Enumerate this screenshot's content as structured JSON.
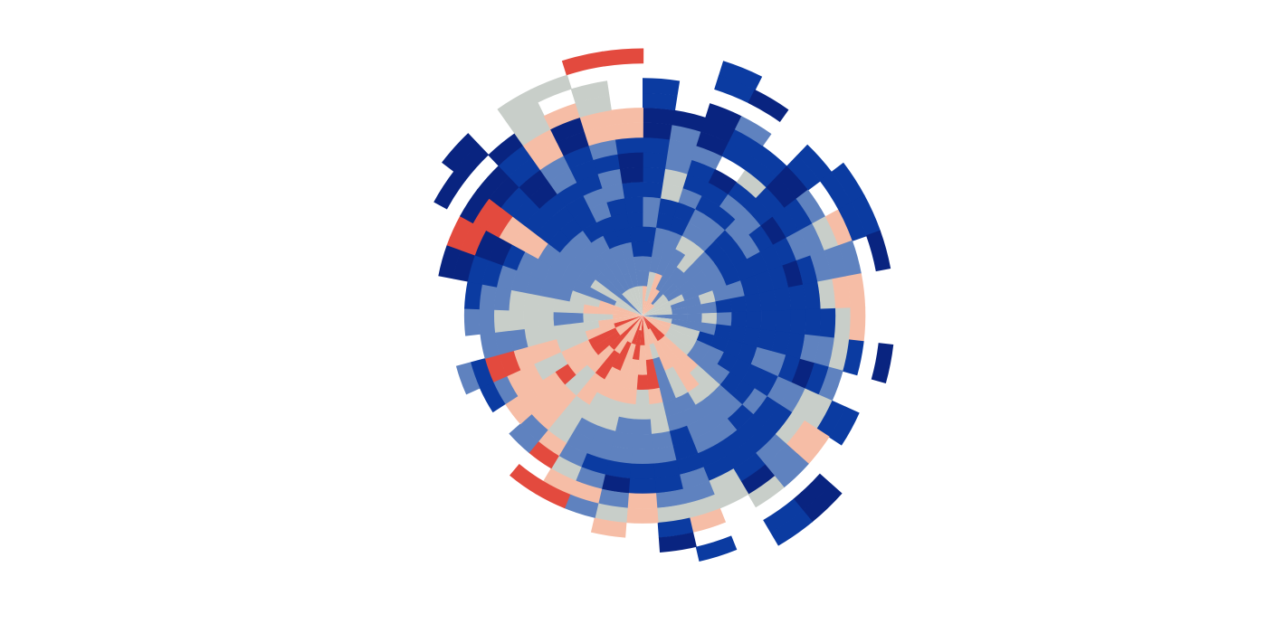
{
  "chart_data": {
    "type": "heatmap",
    "title": "",
    "layout": "radial",
    "palette": {
      "1": "#e34a3e",
      "2": "#f6bda6",
      "3": "#c8cec9",
      "4": "#5f82bf",
      "5": "#0b3ba1",
      "6": "#092480"
    },
    "max_rings": 18,
    "sectors": [
      [
        2,
        2,
        4,
        4,
        5,
        5,
        4,
        4,
        5,
        5,
        5,
        5,
        6,
        6,
        5,
        5
      ],
      [
        2,
        3,
        3,
        4,
        4,
        4,
        5,
        5,
        3,
        3,
        4,
        4,
        4,
        6
      ],
      [
        2,
        2,
        2,
        4,
        4,
        4,
        5,
        5,
        4,
        5,
        5,
        4,
        6,
        6,
        6,
        0,
        5,
        5
      ],
      [
        2,
        2,
        4,
        4,
        4,
        3,
        4,
        4,
        5,
        5,
        6,
        0,
        5,
        5,
        4,
        0,
        6
      ],
      [
        2,
        4,
        4,
        4,
        3,
        3,
        4,
        4,
        5,
        4,
        5,
        3,
        5,
        5
      ],
      [
        2,
        3,
        4,
        4,
        4,
        4,
        5,
        5,
        4,
        4,
        5,
        5,
        6,
        6,
        5,
        5
      ],
      [
        3,
        3,
        4,
        4,
        4,
        4,
        5,
        5,
        4,
        5,
        6,
        5,
        5,
        4,
        0,
        5,
        5
      ],
      [
        3,
        3,
        3,
        4,
        4,
        4,
        5,
        5,
        5,
        5,
        5,
        4,
        4,
        3,
        2,
        5,
        5
      ],
      [
        3,
        3,
        4,
        4,
        3,
        4,
        4,
        5,
        5,
        5,
        6,
        5,
        4,
        4,
        4,
        0,
        6
      ],
      [
        3,
        3,
        4,
        4,
        4,
        5,
        5,
        5,
        5,
        5,
        5,
        5,
        3,
        2,
        2,
        0
      ],
      [
        4,
        4,
        4,
        4,
        3,
        4,
        5,
        5,
        5,
        5,
        5,
        5,
        5,
        3,
        2
      ],
      [
        3,
        3,
        4,
        4,
        4,
        5,
        5,
        5,
        5,
        5,
        5,
        4,
        4,
        3,
        5,
        0,
        6
      ],
      [
        2,
        2,
        3,
        3,
        5,
        5,
        5,
        5,
        4,
        4,
        5,
        6,
        5,
        4
      ],
      [
        2,
        2,
        3,
        3,
        4,
        4,
        5,
        5,
        5,
        5,
        4,
        4,
        3,
        3,
        5,
        5
      ],
      [
        2,
        2,
        3,
        3,
        4,
        4,
        4,
        5,
        5,
        4,
        5,
        5,
        3,
        2,
        2
      ],
      [
        1,
        1,
        2,
        2,
        2,
        3,
        3,
        4,
        4,
        5,
        5,
        5,
        4,
        4,
        4,
        0,
        6,
        6
      ],
      [
        1,
        1,
        2,
        2,
        2,
        2,
        3,
        4,
        4,
        4,
        5,
        5,
        5,
        6,
        3,
        0,
        5,
        5
      ],
      [
        1,
        2,
        2,
        2,
        3,
        3,
        4,
        4,
        4,
        4,
        5,
        5,
        3,
        3
      ],
      [
        2,
        2,
        3,
        4,
        4,
        4,
        4,
        4,
        5,
        5,
        5,
        4,
        4,
        3,
        2,
        0,
        5
      ],
      [
        2,
        2,
        2,
        1,
        1,
        2,
        3,
        3,
        4,
        4,
        5,
        5,
        4,
        3,
        5,
        6
      ],
      [
        1,
        1,
        2,
        2,
        1,
        3,
        3,
        4,
        4,
        4,
        5,
        5,
        2,
        2
      ],
      [
        2,
        1,
        1,
        2,
        2,
        2,
        3,
        4,
        4,
        4,
        5,
        6,
        4,
        3,
        2
      ],
      [
        1,
        1,
        2,
        2,
        2,
        2,
        3,
        3,
        4,
        4,
        5,
        4,
        2,
        4
      ],
      [
        2,
        2,
        1,
        1,
        2,
        2,
        3,
        3,
        4,
        4,
        4,
        3,
        2,
        1
      ],
      [
        2,
        2,
        2,
        1,
        1,
        2,
        2,
        3,
        3,
        3,
        2,
        1,
        0,
        1
      ],
      [
        1,
        1,
        1,
        2,
        2,
        3,
        3,
        2,
        2,
        2,
        4,
        4
      ],
      [
        2,
        2,
        1,
        1,
        2,
        2,
        1,
        2,
        2,
        2,
        2
      ],
      [
        2,
        2,
        1,
        1,
        2,
        2,
        3,
        3,
        2,
        2,
        4,
        5
      ],
      [
        1,
        1,
        2,
        2,
        3,
        3,
        2,
        2,
        2,
        1,
        1,
        5,
        4
      ],
      [
        2,
        2,
        2,
        3,
        3,
        3,
        3,
        3,
        4,
        4,
        4
      ],
      [
        2,
        2,
        3,
        3,
        4,
        4,
        3,
        3,
        3,
        3,
        4,
        4
      ],
      [
        2,
        2,
        2,
        2,
        3,
        3,
        3,
        3,
        3,
        4,
        4,
        5
      ],
      [
        2,
        2,
        2,
        3,
        3,
        4,
        4,
        4,
        4,
        4,
        5,
        5,
        6,
        6
      ],
      [
        3,
        3,
        4,
        4,
        4,
        4,
        4,
        4,
        4,
        5,
        6,
        6,
        1,
        1
      ],
      [
        3,
        3,
        3,
        3,
        4,
        4,
        4,
        4,
        2,
        2,
        2,
        1,
        1,
        6,
        0,
        6
      ],
      [
        4,
        4,
        4,
        4,
        4,
        4,
        4,
        5,
        5,
        5,
        5,
        5,
        6,
        6,
        0,
        6,
        6,
        0
      ],
      [
        3,
        3,
        4,
        4,
        4,
        4,
        4,
        5,
        5,
        5,
        6,
        6,
        5,
        5,
        6,
        0,
        0,
        0
      ],
      [
        3,
        3,
        4,
        4,
        4,
        4,
        5,
        5,
        5,
        5,
        4,
        4,
        2,
        2,
        3,
        3,
        3,
        0
      ],
      [
        3,
        3,
        4,
        4,
        4,
        5,
        5,
        4,
        4,
        5,
        5,
        5,
        6,
        6,
        2,
        0,
        3,
        0
      ],
      [
        3,
        3,
        4,
        4,
        4,
        5,
        5,
        5,
        4,
        4,
        5,
        4,
        2,
        2,
        3,
        3,
        0,
        1
      ],
      [
        3,
        3,
        4,
        4,
        5,
        5,
        5,
        5,
        5,
        6,
        6,
        5,
        2,
        2,
        0,
        0,
        0,
        1
      ]
    ]
  }
}
